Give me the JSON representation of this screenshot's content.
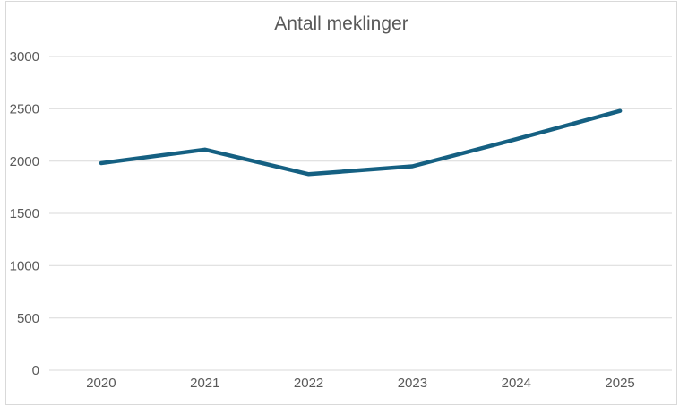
{
  "chart_data": {
    "type": "line",
    "title": "Antall meklinger",
    "categories": [
      "2020",
      "2021",
      "2022",
      "2023",
      "2024",
      "2025"
    ],
    "series": [
      {
        "name": "Antall meklinger",
        "values": [
          1980,
          2110,
          1875,
          1950,
          2210,
          2480
        ]
      }
    ],
    "xlabel": "",
    "ylabel": "",
    "ylim": [
      0,
      3000
    ],
    "ytick_step": 500,
    "yticks": [
      "0",
      "500",
      "1000",
      "1500",
      "2000",
      "2500",
      "3000"
    ],
    "grid": true,
    "legend_position": "none",
    "colors": {
      "line": "#156082",
      "grid": "#d9d9d9",
      "frame_border": "#d9d9d9",
      "tick_text": "#595959",
      "title_text": "#595959",
      "background": "#ffffff"
    }
  }
}
